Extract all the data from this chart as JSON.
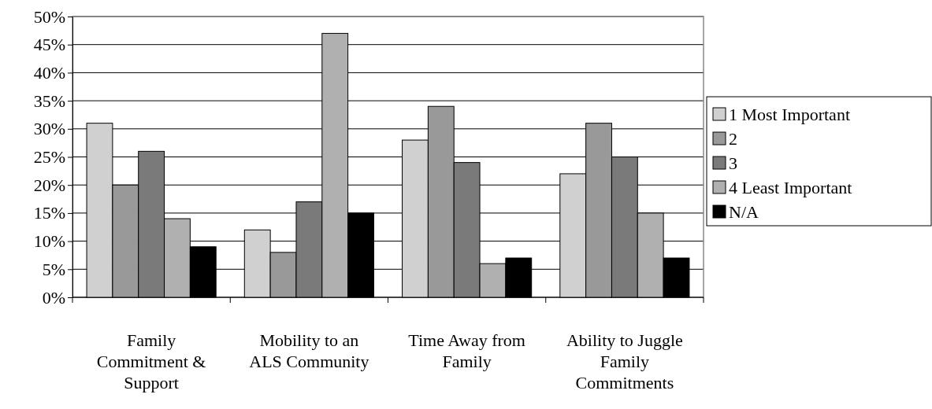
{
  "chart_data": {
    "type": "bar",
    "categories": [
      "Family Commitment & Support",
      "Mobility to an ALS Community",
      "Time Away from Family",
      "Ability to Juggle Family Commitments"
    ],
    "series": [
      {
        "name": "1 Most Important",
        "color": "#d0d0d0",
        "values": [
          31,
          12,
          28,
          22
        ]
      },
      {
        "name": "2",
        "color": "#999999",
        "values": [
          20,
          8,
          34,
          31
        ]
      },
      {
        "name": "3",
        "color": "#7a7a7a",
        "values": [
          26,
          17,
          24,
          25
        ]
      },
      {
        "name": "4 Least Important",
        "color": "#b0b0b0",
        "values": [
          14,
          47,
          6,
          15
        ]
      },
      {
        "name": "N/A",
        "color": "#000000",
        "values": [
          9,
          15,
          7,
          7
        ]
      }
    ],
    "ylim": [
      0,
      50
    ],
    "yticks": [
      {
        "value": 0,
        "label": "0%"
      },
      {
        "value": 5,
        "label": "5%"
      },
      {
        "value": 10,
        "label": "10%"
      },
      {
        "value": 15,
        "label": "15%"
      },
      {
        "value": 20,
        "label": "20%"
      },
      {
        "value": 25,
        "label": "25%"
      },
      {
        "value": 30,
        "label": "30%"
      },
      {
        "value": 35,
        "label": "35%"
      },
      {
        "value": 40,
        "label": "40%"
      },
      {
        "value": 45,
        "label": "45%"
      },
      {
        "value": 50,
        "label": "50%"
      }
    ],
    "grid": "y",
    "legend": "right"
  }
}
